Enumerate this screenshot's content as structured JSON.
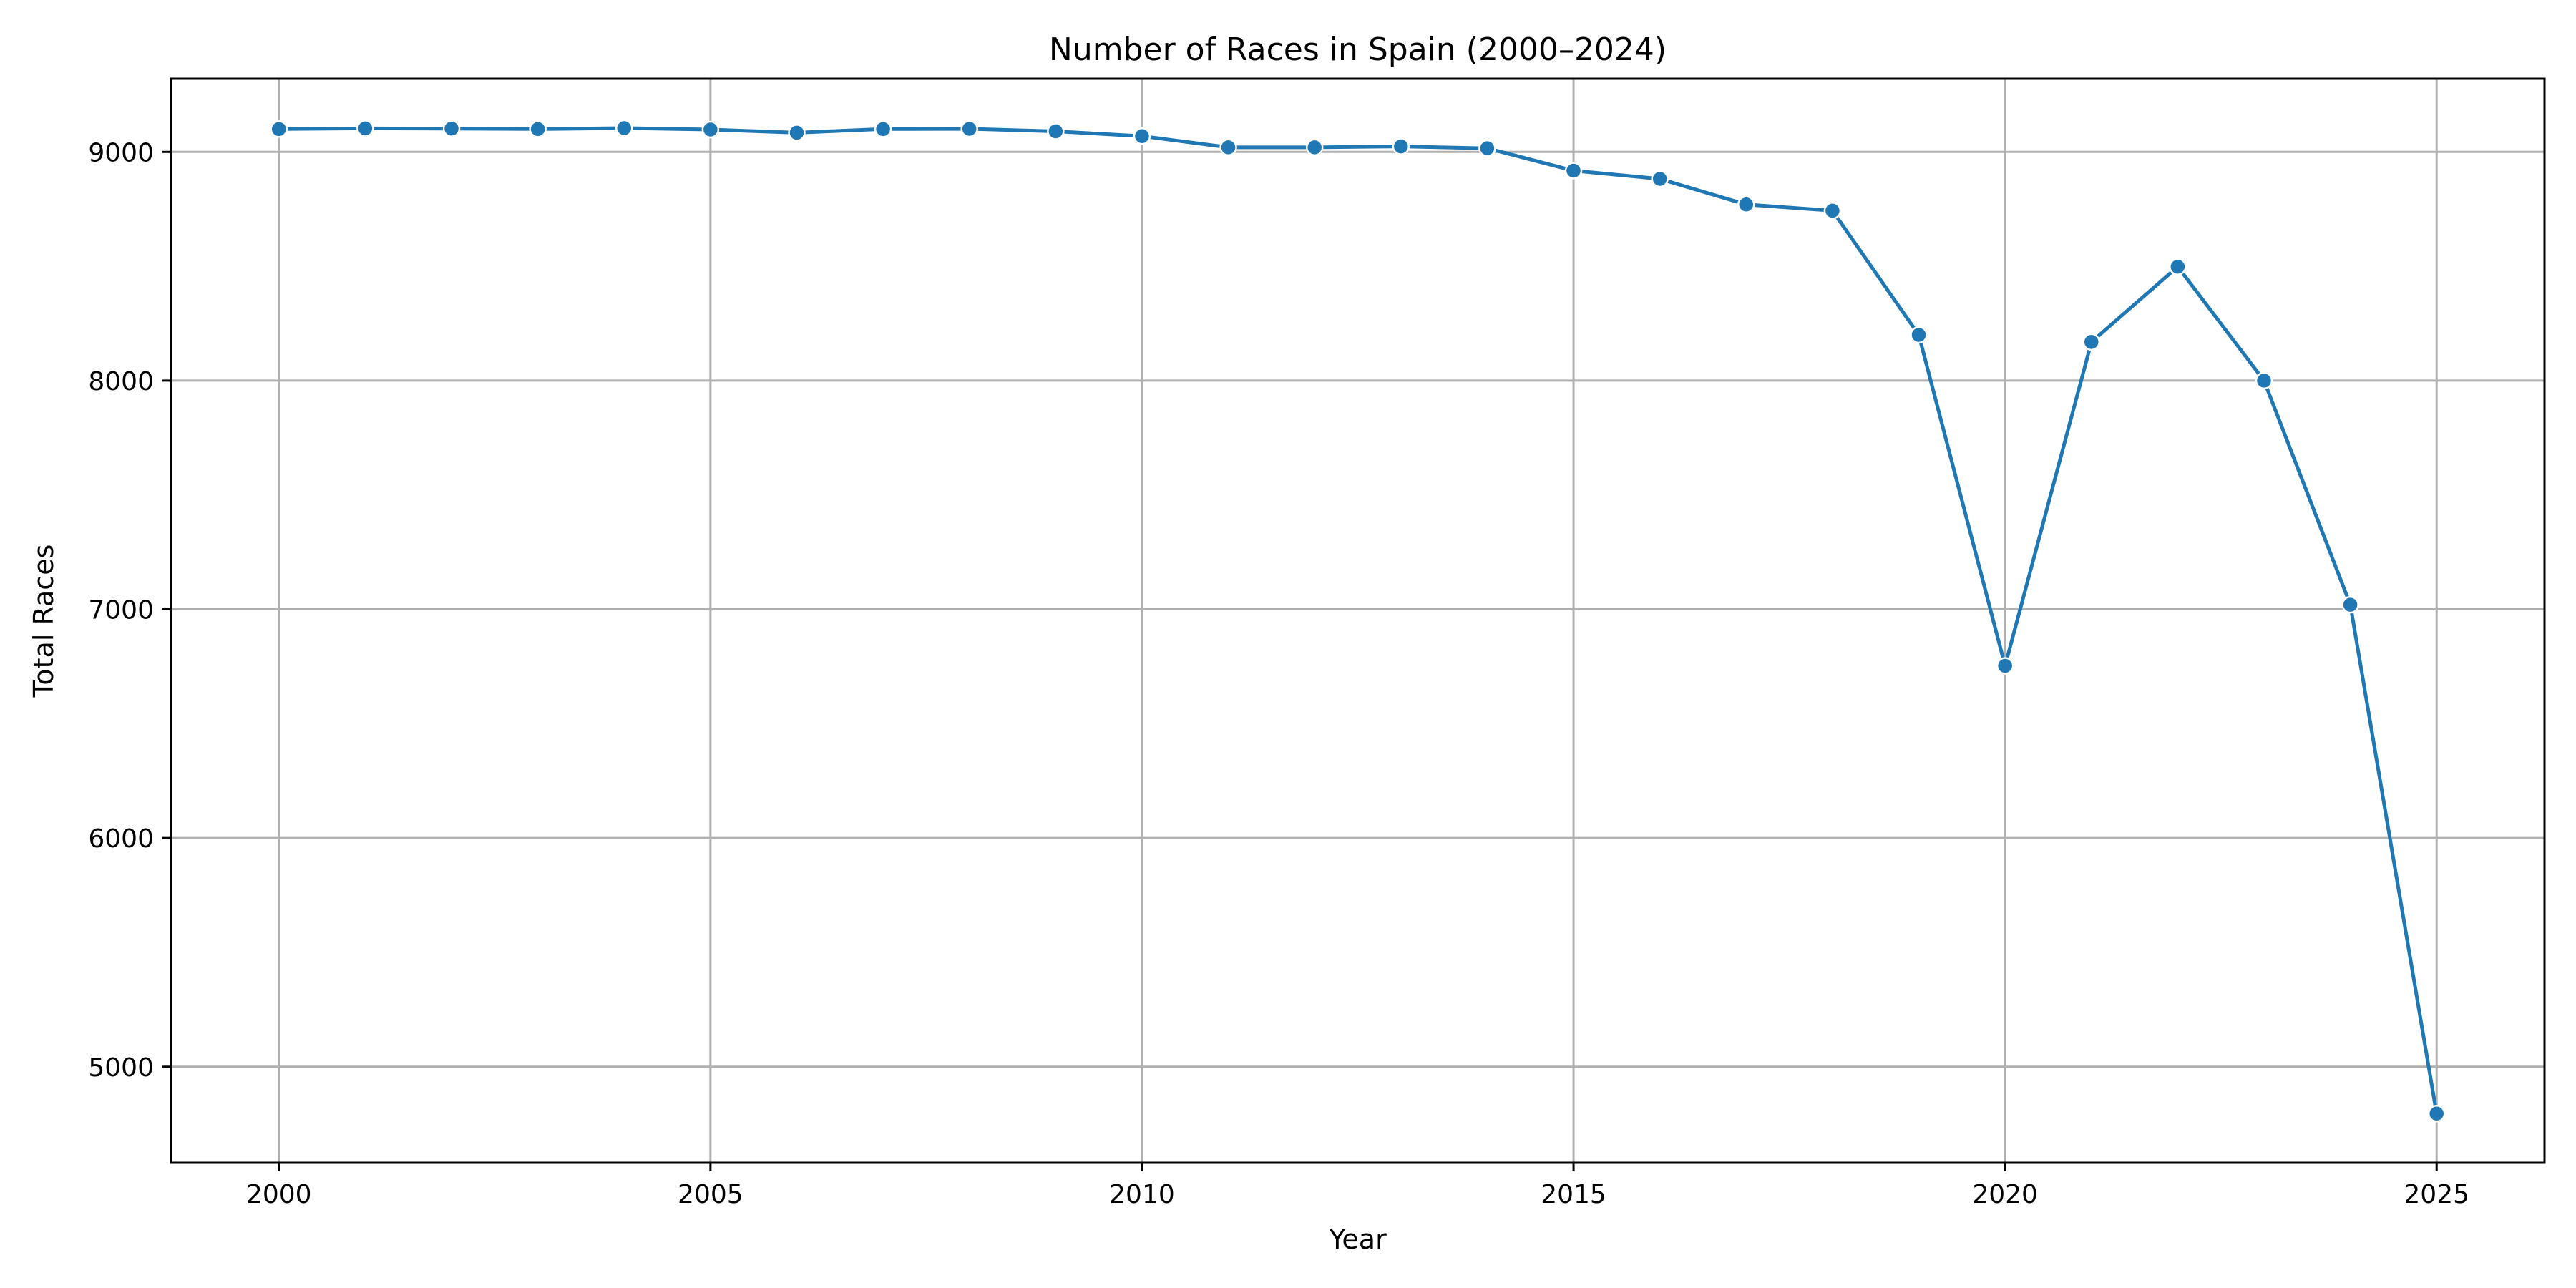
{
  "chart_data": {
    "type": "line",
    "title": "Number of Races in Spain (2000–2024)",
    "xlabel": "Year",
    "ylabel": "Total Races",
    "xlim": [
      1998.75,
      2026.25
    ],
    "ylim": [
      4580,
      9320
    ],
    "x_ticks": [
      2000,
      2005,
      2010,
      2015,
      2020,
      2025
    ],
    "y_ticks": [
      5000,
      6000,
      7000,
      8000,
      9000
    ],
    "grid": true,
    "legend": "none",
    "series": [
      {
        "color": "#1f77b4",
        "marker": "circle",
        "x": [
          2000,
          2001,
          2002,
          2003,
          2004,
          2005,
          2006,
          2007,
          2008,
          2009,
          2010,
          2011,
          2012,
          2013,
          2014,
          2015,
          2016,
          2017,
          2018,
          2019,
          2020,
          2021,
          2022,
          2023,
          2024,
          2025
        ],
        "y": [
          9100,
          9103,
          9102,
          9100,
          9104,
          9098,
          9084,
          9100,
          9101,
          9090,
          9069,
          9020,
          9020,
          9024,
          9016,
          8918,
          8882,
          8770,
          8743,
          8200,
          6753,
          8169,
          8498,
          8000,
          7020,
          4795
        ]
      }
    ]
  }
}
